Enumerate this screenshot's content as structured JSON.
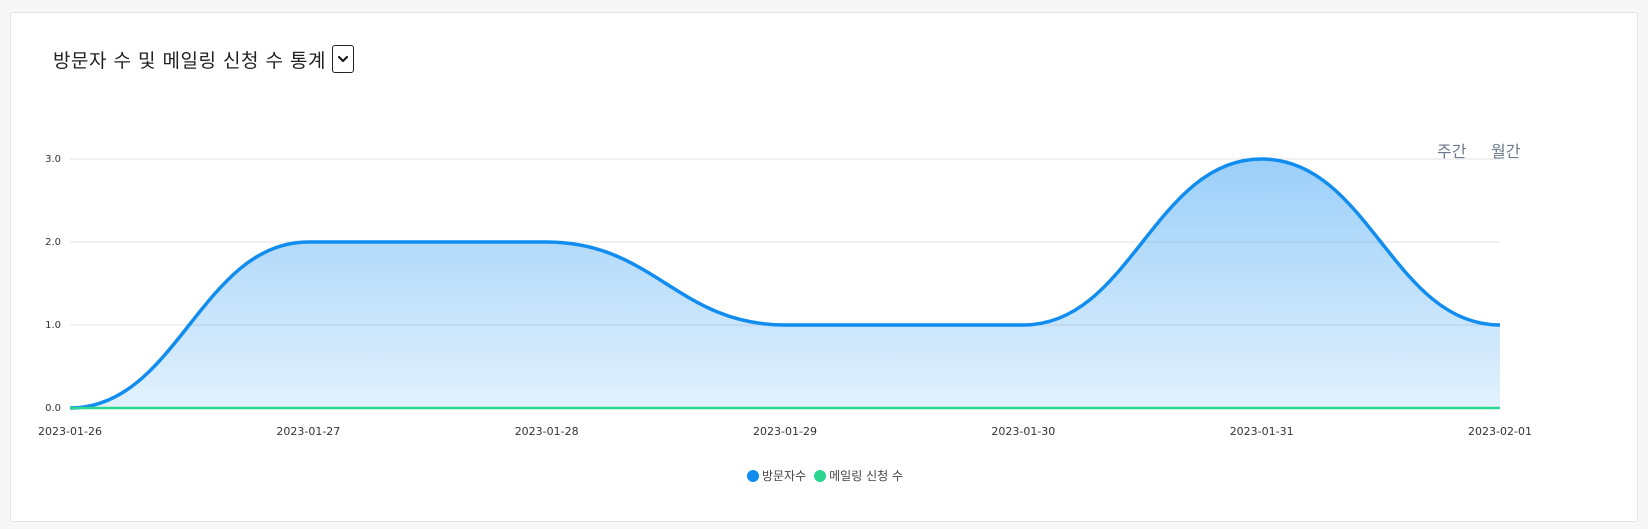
{
  "header": {
    "title": "방문자 수 및 메일링 신청 수 통계"
  },
  "period_tabs": {
    "weekly": "주간",
    "monthly": "월간"
  },
  "colors": {
    "visitors": "#118DF0",
    "mailing": "#2BD68F",
    "grid": "#e3e3e3"
  },
  "chart_data": {
    "type": "area",
    "x": [
      "2023-01-26",
      "2023-01-27",
      "2023-01-28",
      "2023-01-29",
      "2023-01-30",
      "2023-01-31",
      "2023-02-01"
    ],
    "series": [
      {
        "name": "방문자수",
        "values": [
          0,
          2,
          2,
          1,
          1,
          3,
          1
        ]
      },
      {
        "name": "메일링 신청 수",
        "values": [
          0,
          0,
          0,
          0,
          0,
          0,
          0
        ]
      }
    ],
    "yticks": [
      "0.0",
      "1.0",
      "2.0",
      "3.0"
    ],
    "ylim": [
      0,
      3
    ],
    "grid": true,
    "legend": "bottom-center"
  }
}
